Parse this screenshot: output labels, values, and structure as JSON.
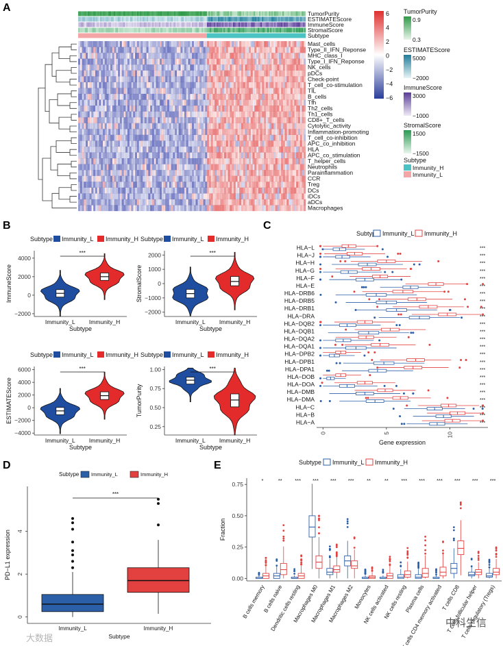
{
  "panels": {
    "A": "A",
    "B": "B",
    "C": "C",
    "D": "D",
    "E": "E"
  },
  "colors": {
    "low": "#2f3e9e",
    "high": "#e04040",
    "immunity_h": "#4cc3c3",
    "immunity_l": "#f4a6a6",
    "purity": "#3aa856",
    "estimate": "#2a8fa6",
    "immune": "#6a4ca3",
    "stromal": "#2e9e58",
    "violin_l": "#1f4ea0",
    "violin_h": "#e32b2b",
    "box_l": "#2b5fa8",
    "box_h": "#e2413f"
  },
  "watermarks": [
    "中科生信",
    "大数据"
  ],
  "chart_data": [
    {
      "panel": "A",
      "type": "heatmap",
      "title": "",
      "annotation_rows": [
        "TumorPurity",
        "ESTIMATEScore",
        "ImmuneScore",
        "StromalScore",
        "Subtype"
      ],
      "rows": [
        "Mast_cells",
        "Type_II_IFN_Reponse",
        "MHC_class_I",
        "Type_I_IFN_Reponse",
        "NK_cells",
        "pDCs",
        "Check-point",
        "T_cell_co-stimulation",
        "TIL",
        "B_cells",
        "Tfh",
        "Th2_cells",
        "Th1_cells",
        "CD8+_T_cells",
        "Cytolytic_activity",
        "Inflammation-promoting",
        "T_cell_co-inhibition",
        "APC_co_inhibition",
        "HLA",
        "APC_co_stimulation",
        "T_helper_cells",
        "Neutrophils",
        "Parainflammation",
        "CCR",
        "Treg",
        "DCs",
        "iDCs",
        "aDCs",
        "Macrophages"
      ],
      "legend_scale": {
        "ticks": [
          "6",
          "4",
          "2",
          "0",
          "−2",
          "−4",
          "−6"
        ]
      },
      "legends": [
        {
          "title": "TumorPurity",
          "labels": [
            "0.9",
            "0.3"
          ]
        },
        {
          "title": "ESTIMATEScore",
          "labels": [
            "5000",
            "−2000"
          ]
        },
        {
          "title": "ImmuneScore",
          "labels": [
            "3000",
            "−1000"
          ]
        },
        {
          "title": "StromalScore",
          "labels": [
            "1500",
            "−1500"
          ]
        },
        {
          "title": "Subtype",
          "labels": [
            "Immunity_H",
            "Immunity_L"
          ]
        }
      ]
    },
    {
      "panel": "B",
      "type": "violin",
      "legend_title": "Subtype",
      "legend": [
        "Immunity_L",
        "Immunity_H"
      ],
      "categories": [
        "Immunity_L",
        "Immunity_H"
      ],
      "xlabel": "Subtype",
      "plots": [
        {
          "ylabel": "ImmuneScore",
          "ylim": [
            -2300,
            4800
          ],
          "ticks": [
            "4000",
            "2000",
            "0",
            "−2000"
          ],
          "tick_values": [
            4000,
            2000,
            0,
            -2000
          ],
          "sig": "***",
          "medians": [
            200,
            2000
          ],
          "q1": [
            -200,
            1600
          ],
          "q3": [
            600,
            2400
          ]
        },
        {
          "ylabel": "StromalScore",
          "ylim": [
            -2300,
            2300
          ],
          "ticks": [
            "2000",
            "1000",
            "0",
            "−1000",
            "−2000"
          ],
          "tick_values": [
            2000,
            1000,
            0,
            -1000,
            -2000
          ],
          "sig": "***",
          "medians": [
            -700,
            150
          ],
          "q1": [
            -1000,
            -150
          ],
          "q3": [
            -400,
            500
          ]
        },
        {
          "ylabel": "ESTIMATEScore",
          "ylim": [
            -4300,
            6500
          ],
          "ticks": [
            "6000",
            "4000",
            "2000",
            "0",
            "−2000",
            "−4000"
          ],
          "tick_values": [
            6000,
            4000,
            2000,
            0,
            -2000,
            -4000
          ],
          "sig": "***",
          "medians": [
            -500,
            1900
          ],
          "q1": [
            -1100,
            1300
          ],
          "q3": [
            50,
            2500
          ]
        },
        {
          "ylabel": "TumorPurity",
          "ylim": [
            0.14,
            1.04
          ],
          "ticks": [
            "1.00",
            "0.75",
            "0.50",
            "0.25"
          ],
          "tick_values": [
            1.0,
            0.75,
            0.5,
            0.25
          ],
          "sig": "***",
          "medians": [
            0.86,
            0.6
          ],
          "q1": [
            0.81,
            0.51
          ],
          "q3": [
            0.9,
            0.68
          ]
        }
      ]
    },
    {
      "panel": "C",
      "type": "horizontal boxplot",
      "legend_title": "Subtype",
      "legend": [
        "Immunity_L",
        "Immunity_H"
      ],
      "xlabel": "Gene expression",
      "xticks": [
        "0",
        "5",
        "10"
      ],
      "xlim": [
        -0.5,
        13
      ],
      "genes": [
        "HLA−L",
        "HLA−J",
        "HLA−H",
        "HLA−G",
        "HLA−F",
        "HLA−E",
        "HLA−DRB6",
        "HLA−DRB5",
        "HLA−DRB1",
        "HLA−DRA",
        "HLA−DQB2",
        "HLA−DQB1",
        "HLA−DQA2",
        "HLA−DQA1",
        "HLA−DPB2",
        "HLA−DPB1",
        "HLA−DPA1",
        "HLA−DOB",
        "HLA−DOA",
        "HLA−DMB",
        "HLA−DMA",
        "HLA−C",
        "HLA−B",
        "HLA−A"
      ],
      "significance": "***",
      "series": [
        {
          "name": "Immunity_L",
          "medians": [
            1.3,
            1.5,
            3.5,
            2.0,
            3.3,
            6.9,
            4.2,
            5.0,
            5.8,
            7.6,
            1.9,
            3.6,
            1.6,
            2.6,
            0.9,
            4.8,
            4.3,
            0.6,
            1.9,
            3.3,
            4.1,
            8.8,
            9.5,
            9.0
          ],
          "q1": [
            0.8,
            1.0,
            2.8,
            1.4,
            2.6,
            6.3,
            3.4,
            4.2,
            5.0,
            6.8,
            1.3,
            2.8,
            1.0,
            1.8,
            0.5,
            4.0,
            3.6,
            0.3,
            1.3,
            2.6,
            3.4,
            8.2,
            8.9,
            8.4
          ],
          "q3": [
            1.8,
            2.1,
            4.2,
            2.7,
            4.0,
            7.5,
            5.0,
            5.8,
            6.6,
            8.4,
            2.6,
            4.4,
            2.2,
            3.4,
            1.3,
            5.6,
            5.0,
            0.9,
            2.5,
            4.0,
            4.8,
            9.4,
            10.1,
            9.6
          ]
        },
        {
          "name": "Immunity_H",
          "medians": [
            2.0,
            2.5,
            5.0,
            3.8,
            4.5,
            8.9,
            6.3,
            7.4,
            8.3,
            9.8,
            3.3,
            5.3,
            3.4,
            4.5,
            1.4,
            7.3,
            7.1,
            1.4,
            3.3,
            4.9,
            6.1,
            9.9,
            10.6,
            10.2
          ],
          "q1": [
            1.5,
            1.9,
            4.3,
            3.1,
            3.9,
            8.3,
            5.5,
            6.7,
            7.6,
            9.1,
            2.7,
            4.6,
            2.8,
            3.8,
            1.0,
            6.6,
            6.4,
            1.0,
            2.7,
            4.3,
            5.5,
            9.3,
            10.0,
            9.6
          ],
          "q3": [
            2.6,
            3.1,
            5.7,
            4.5,
            5.1,
            9.5,
            7.1,
            8.1,
            9.0,
            10.5,
            3.9,
            6.0,
            4.0,
            5.2,
            1.8,
            8.0,
            7.8,
            1.8,
            3.9,
            5.5,
            6.7,
            10.5,
            11.2,
            10.8
          ]
        }
      ]
    },
    {
      "panel": "D",
      "type": "boxplot",
      "legend_title": "Subtype",
      "legend": [
        "Immunity_L",
        "Immunity_H"
      ],
      "categories": [
        "Immunity_L",
        "Immunity_H"
      ],
      "xlabel": "Subtype",
      "ylabel": "PD−L1 expression",
      "yticks": [
        "0",
        "2",
        "4"
      ],
      "ylim": [
        -0.3,
        6.1
      ],
      "sig": "***",
      "boxes": [
        {
          "min": 0,
          "q1": 0.25,
          "median": 0.6,
          "q3": 1.05,
          "max": 2.1,
          "outliers": [
            2.3,
            2.6,
            2.9,
            3.1,
            3.5,
            4.1,
            4.4,
            4.6
          ]
        },
        {
          "min": 0.15,
          "q1": 1.15,
          "median": 1.7,
          "q3": 2.3,
          "max": 3.6,
          "outliers": [
            4.3,
            5.3,
            5.5
          ]
        }
      ]
    },
    {
      "panel": "E",
      "type": "grouped boxplot",
      "legend_title": "Subtype",
      "legend": [
        "Immunity_L",
        "Immunity_H"
      ],
      "ylabel": "Fraction",
      "yticks": [
        "0.00",
        "0.25",
        "0.50",
        "0.75"
      ],
      "ylim": [
        -0.02,
        0.8
      ],
      "categories": [
        "B cells memory",
        "B cells naive",
        "Dendritic cells resting",
        "Macrophages M0",
        "Macrophages M1",
        "Macrophages M2",
        "Monocytes",
        "NK cells activated",
        "NK cells resting",
        "Plasma cells",
        "T cells CD4 memory activated",
        "T cells CD8",
        "T cells follicular helper",
        "T cells regulatory (Tregs)"
      ],
      "significance": [
        "*",
        "**",
        "***",
        "***",
        "***",
        "***",
        "**",
        "**",
        "***",
        "***",
        "***",
        "***",
        "***",
        "***"
      ],
      "series": [
        {
          "name": "Immunity_L",
          "medians": [
            0.0,
            0.02,
            0.0,
            0.41,
            0.05,
            0.14,
            0.0,
            0.0,
            0.01,
            0.01,
            0.0,
            0.08,
            0.03,
            0.02
          ],
          "q1": [
            0.0,
            0.0,
            0.0,
            0.33,
            0.03,
            0.1,
            0.0,
            0.0,
            0.0,
            0.0,
            0.0,
            0.04,
            0.02,
            0.01
          ],
          "q3": [
            0.01,
            0.04,
            0.01,
            0.5,
            0.08,
            0.18,
            0.01,
            0.01,
            0.03,
            0.03,
            0.01,
            0.12,
            0.05,
            0.04
          ]
        },
        {
          "name": "Immunity_H",
          "medians": [
            0.02,
            0.07,
            0.02,
            0.13,
            0.07,
            0.1,
            0.01,
            0.02,
            0.03,
            0.04,
            0.05,
            0.24,
            0.05,
            0.05
          ],
          "q1": [
            0.0,
            0.03,
            0.0,
            0.08,
            0.05,
            0.08,
            0.0,
            0.0,
            0.01,
            0.01,
            0.02,
            0.19,
            0.03,
            0.03
          ],
          "q3": [
            0.04,
            0.12,
            0.04,
            0.18,
            0.1,
            0.14,
            0.02,
            0.04,
            0.06,
            0.08,
            0.09,
            0.3,
            0.07,
            0.08
          ]
        }
      ]
    }
  ]
}
